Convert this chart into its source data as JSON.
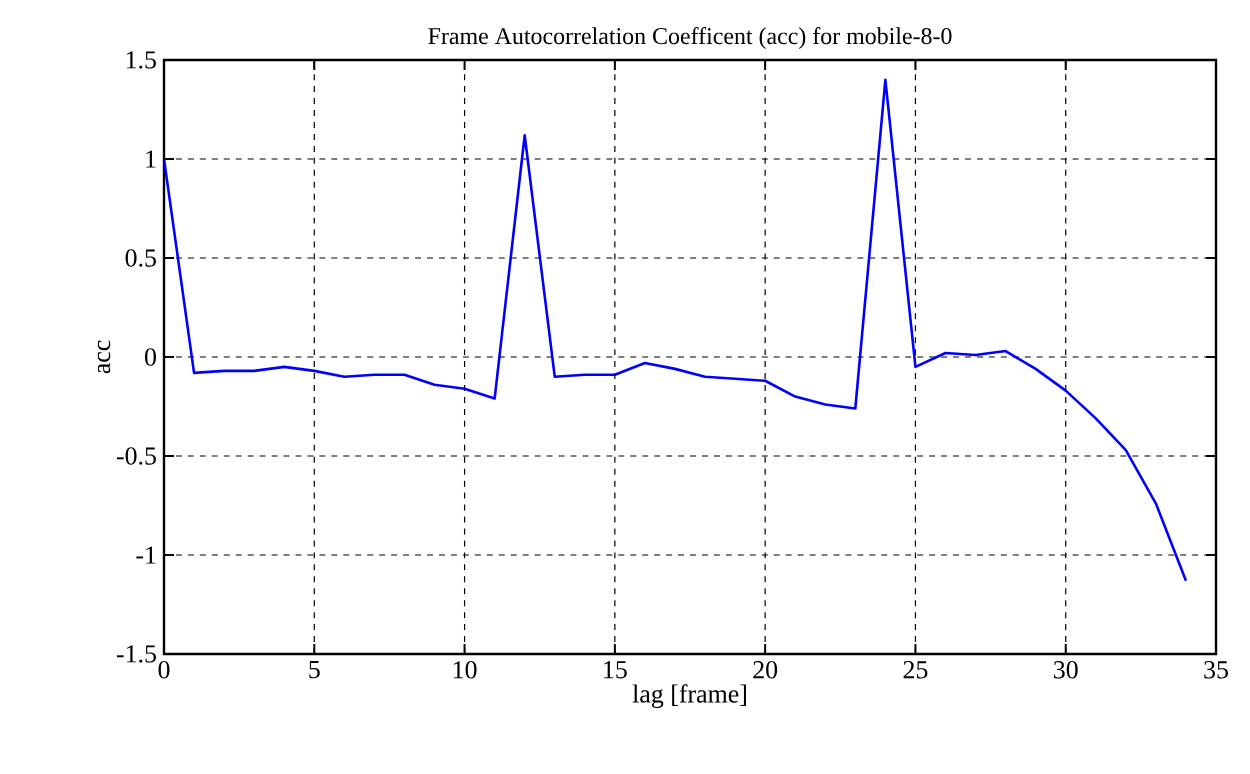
{
  "chart_data": {
    "type": "line",
    "title": "Frame Autocorrelation Coefficent (acc) for mobile-8-0",
    "xlabel": "lag [frame]",
    "ylabel": "acc",
    "x": [
      0,
      1,
      2,
      3,
      4,
      5,
      6,
      7,
      8,
      9,
      10,
      11,
      12,
      13,
      14,
      15,
      16,
      17,
      18,
      19,
      20,
      21,
      22,
      23,
      24,
      25,
      26,
      27,
      28,
      29,
      30,
      31,
      32,
      33,
      34
    ],
    "series": [
      {
        "color": "#0000ff",
        "values": [
          1.0,
          -0.08,
          -0.07,
          -0.07,
          -0.05,
          -0.07,
          -0.1,
          -0.09,
          -0.09,
          -0.14,
          -0.16,
          -0.21,
          1.12,
          -0.1,
          -0.09,
          -0.09,
          -0.03,
          -0.06,
          -0.1,
          -0.11,
          -0.12,
          -0.2,
          -0.24,
          -0.26,
          1.4,
          -0.05,
          0.02,
          0.01,
          0.03,
          -0.06,
          -0.17,
          -0.31,
          -0.47,
          -0.74,
          -1.13
        ]
      }
    ],
    "xlim": [
      0,
      35
    ],
    "ylim": [
      -1.5,
      1.5
    ],
    "xticks": [
      0,
      5,
      10,
      15,
      20,
      25,
      30,
      35
    ],
    "yticks": [
      -1.5,
      -1,
      -0.5,
      0,
      0.5,
      1,
      1.5
    ],
    "grid": true,
    "line_style": "solid",
    "marker": "none"
  }
}
